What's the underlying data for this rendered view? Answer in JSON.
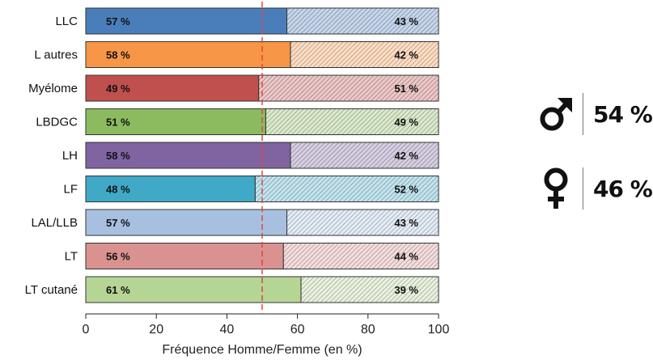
{
  "chart_data": {
    "type": "bar",
    "orientation": "horizontal",
    "stacked": true,
    "categories": [
      "LLC",
      "L autres",
      "Myélome",
      "LBDGC",
      "LH",
      "LF",
      "LAL/LLB",
      "LT",
      "LT cutané"
    ],
    "series": [
      {
        "values": [
          57,
          58,
          49,
          51,
          58,
          48,
          57,
          56,
          61
        ],
        "labels": [
          "57 %",
          "58 %",
          "49 %",
          "51 %",
          "58 %",
          "48 %",
          "57 %",
          "56 %",
          "61 %"
        ]
      },
      {
        "values": [
          43,
          42,
          51,
          49,
          42,
          52,
          43,
          44,
          39
        ],
        "labels": [
          "43 %",
          "42 %",
          "51 %",
          "49 %",
          "42 %",
          "52 %",
          "43 %",
          "44 %",
          "39 %"
        ]
      }
    ],
    "colors": [
      "#4a7ebb",
      "#f79646",
      "#c0504d",
      "#8cbb5f",
      "#8064a2",
      "#3fa9c7",
      "#a8c0e0",
      "#d99290",
      "#b5d595"
    ],
    "xlabel": "Fréquence Homme/Femme (en %)",
    "ylabel": "",
    "xlim": [
      0,
      100
    ],
    "xticks": [
      0,
      20,
      40,
      60,
      80,
      100
    ],
    "reference_line": {
      "x": 50,
      "color": "#e8433a",
      "style": "dashed"
    },
    "grid": false
  },
  "legend": {
    "male": {
      "icon": "male-symbol-icon",
      "value": "54 %"
    },
    "female": {
      "icon": "female-symbol-icon",
      "value": "46 %"
    }
  }
}
